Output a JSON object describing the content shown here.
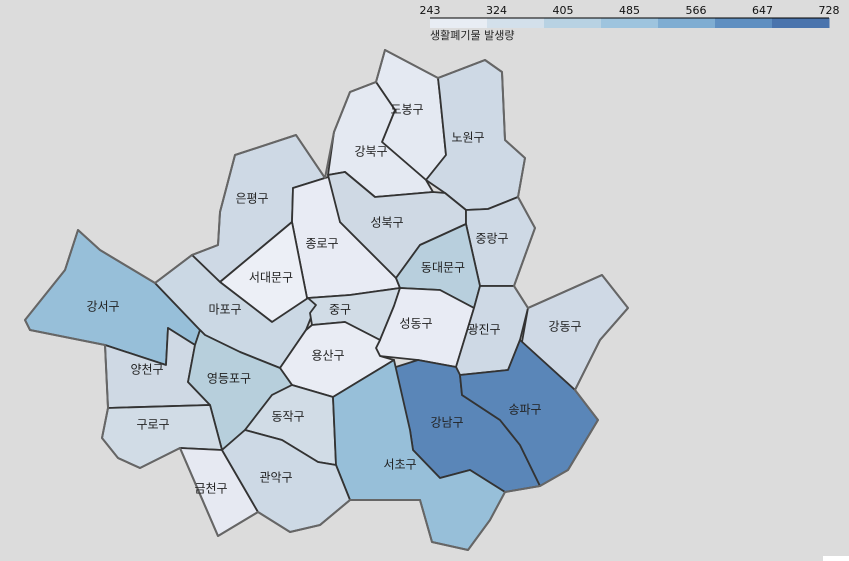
{
  "legend": {
    "title": "생활폐기물 발생량",
    "ticks": [
      "243",
      "324",
      "405",
      "485",
      "566",
      "647",
      "728"
    ],
    "colors": [
      "#e8edf4",
      "#d3e0eb",
      "#b8d2e3",
      "#9ec4de",
      "#7fadd2",
      "#5f8fc1",
      "#4a74ad"
    ]
  },
  "districts": [
    {
      "id": "dobong",
      "label": "도봉구",
      "level": 0,
      "color": "#e4e9f2"
    },
    {
      "id": "nowon",
      "label": "노원구",
      "level": 1,
      "color": "#ced9e5"
    },
    {
      "id": "gangbuk",
      "label": "강북구",
      "level": 0,
      "color": "#e4e9f2"
    },
    {
      "id": "eunpyeong",
      "label": "은평구",
      "level": 1,
      "color": "#ced9e5"
    },
    {
      "id": "jongno",
      "label": "종로구",
      "level": 0,
      "color": "#e8ebf4"
    },
    {
      "id": "seongbuk",
      "label": "성북구",
      "level": 1,
      "color": "#cfd9e4"
    },
    {
      "id": "jungnang",
      "label": "중랑구",
      "level": 1,
      "color": "#ced9e5"
    },
    {
      "id": "dongdaemun",
      "label": "동대문구",
      "level": 2,
      "color": "#b8cfdd"
    },
    {
      "id": "seodaemun",
      "label": "서대문구",
      "level": 0,
      "color": "#eceff6"
    },
    {
      "id": "gangseo",
      "label": "강서구",
      "level": 3,
      "color": "#97bfd9"
    },
    {
      "id": "mapo",
      "label": "마포구",
      "level": 1,
      "color": "#cbd8e4"
    },
    {
      "id": "junggu",
      "label": "중구",
      "level": 1,
      "color": "#d1dce6"
    },
    {
      "id": "seongdong",
      "label": "성동구",
      "level": 0,
      "color": "#e8ebf4"
    },
    {
      "id": "gwangjin",
      "label": "광진구",
      "level": 1,
      "color": "#ced9e5"
    },
    {
      "id": "gangdong",
      "label": "강동구",
      "level": 1,
      "color": "#cfd9e5"
    },
    {
      "id": "yangcheon",
      "label": "양천구",
      "level": 1,
      "color": "#cfd9e4"
    },
    {
      "id": "yongsan",
      "label": "용산구",
      "level": 0,
      "color": "#e9ecf4"
    },
    {
      "id": "yeongdeungpo",
      "label": "영등포구",
      "level": 2,
      "color": "#b7cfdc"
    },
    {
      "id": "guro",
      "label": "구로구",
      "level": 1,
      "color": "#d1dce6"
    },
    {
      "id": "dongjak",
      "label": "동작구",
      "level": 1,
      "color": "#d1dce6"
    },
    {
      "id": "gangnam",
      "label": "강남구",
      "level": 6,
      "color": "#5a86b8"
    },
    {
      "id": "songpa",
      "label": "송파구",
      "level": 6,
      "color": "#5a86b8"
    },
    {
      "id": "seocho",
      "label": "서초구",
      "level": 3,
      "color": "#97bfd9"
    },
    {
      "id": "geumcheon",
      "label": "금천구",
      "level": 0,
      "color": "#e6e9f2"
    },
    {
      "id": "gwanak",
      "label": "관악구",
      "level": 1,
      "color": "#cdd9e5"
    }
  ]
}
